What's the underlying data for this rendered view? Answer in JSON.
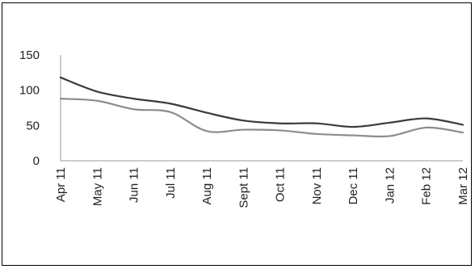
{
  "chart_data": {
    "type": "line",
    "title": "",
    "xlabel": "",
    "ylabel": "",
    "x": [
      "Apr 11",
      "May 11",
      "Jun 11",
      "Jul 11",
      "Aug 11",
      "Sept 11",
      "Oct 11",
      "Nov 11",
      "Dec 11",
      "Jan 12",
      "Feb 12",
      "Mar 12"
    ],
    "ylim": [
      0,
      150
    ],
    "yticks": [
      0,
      50,
      100,
      150
    ],
    "grid": false,
    "legend": "none",
    "series": [
      {
        "color": "#3a3a3a",
        "values": [
          118,
          98,
          88,
          81,
          68,
          57,
          53,
          53,
          48,
          54,
          60,
          51
        ]
      },
      {
        "color": "#8c8c8c",
        "values": [
          88,
          85,
          73,
          69,
          42,
          44,
          43,
          38,
          36,
          35,
          47,
          40
        ]
      }
    ]
  }
}
